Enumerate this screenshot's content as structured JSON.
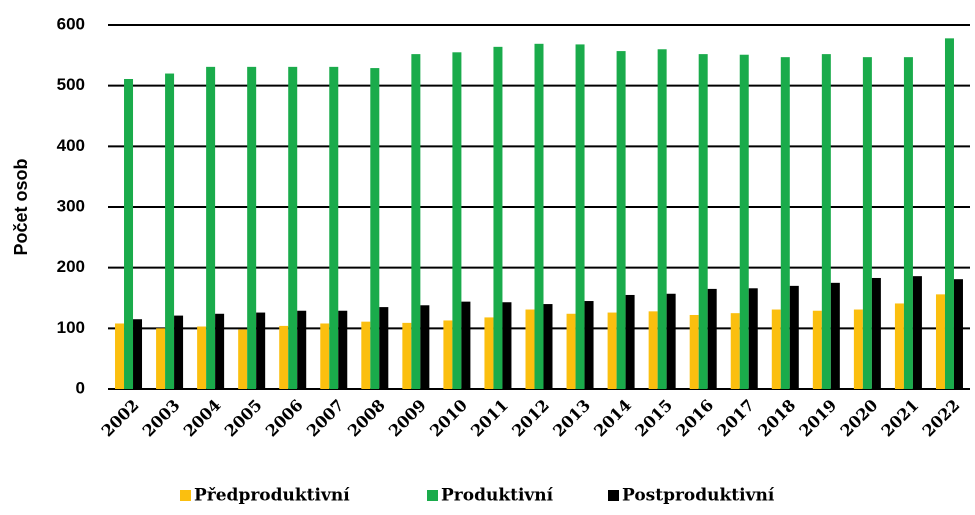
{
  "chart_data": {
    "type": "bar",
    "y_label": "Počet osob",
    "categories": [
      "2002",
      "2003",
      "2004",
      "2005",
      "2006",
      "2007",
      "2008",
      "2009",
      "2010",
      "2011",
      "2012",
      "2013",
      "2014",
      "2015",
      "2016",
      "2017",
      "2018",
      "2019",
      "2020",
      "2021",
      "2022"
    ],
    "series": [
      {
        "name": "Předproduktivní",
        "color": "#fbbf0f",
        "values": [
          108,
          100,
          103,
          98,
          104,
          108,
          111,
          109,
          113,
          118,
          131,
          124,
          126,
          128,
          122,
          125,
          131,
          129,
          131,
          141,
          156
        ]
      },
      {
        "name": "Produktivní",
        "color": "#1aab4b",
        "values": [
          511,
          520,
          531,
          531,
          531,
          531,
          529,
          552,
          555,
          564,
          569,
          568,
          557,
          560,
          552,
          551,
          547,
          552,
          547,
          547,
          578
        ]
      },
      {
        "name": "Postproduktivní",
        "color": "#000000",
        "values": [
          115,
          121,
          124,
          126,
          129,
          129,
          135,
          138,
          144,
          143,
          140,
          145,
          155,
          157,
          165,
          166,
          170,
          175,
          183,
          186,
          181
        ]
      }
    ],
    "ylim": [
      0,
      600
    ],
    "yticks": [
      0,
      100,
      200,
      300,
      400,
      500,
      600
    ],
    "grid": true,
    "legend": "bottom"
  }
}
